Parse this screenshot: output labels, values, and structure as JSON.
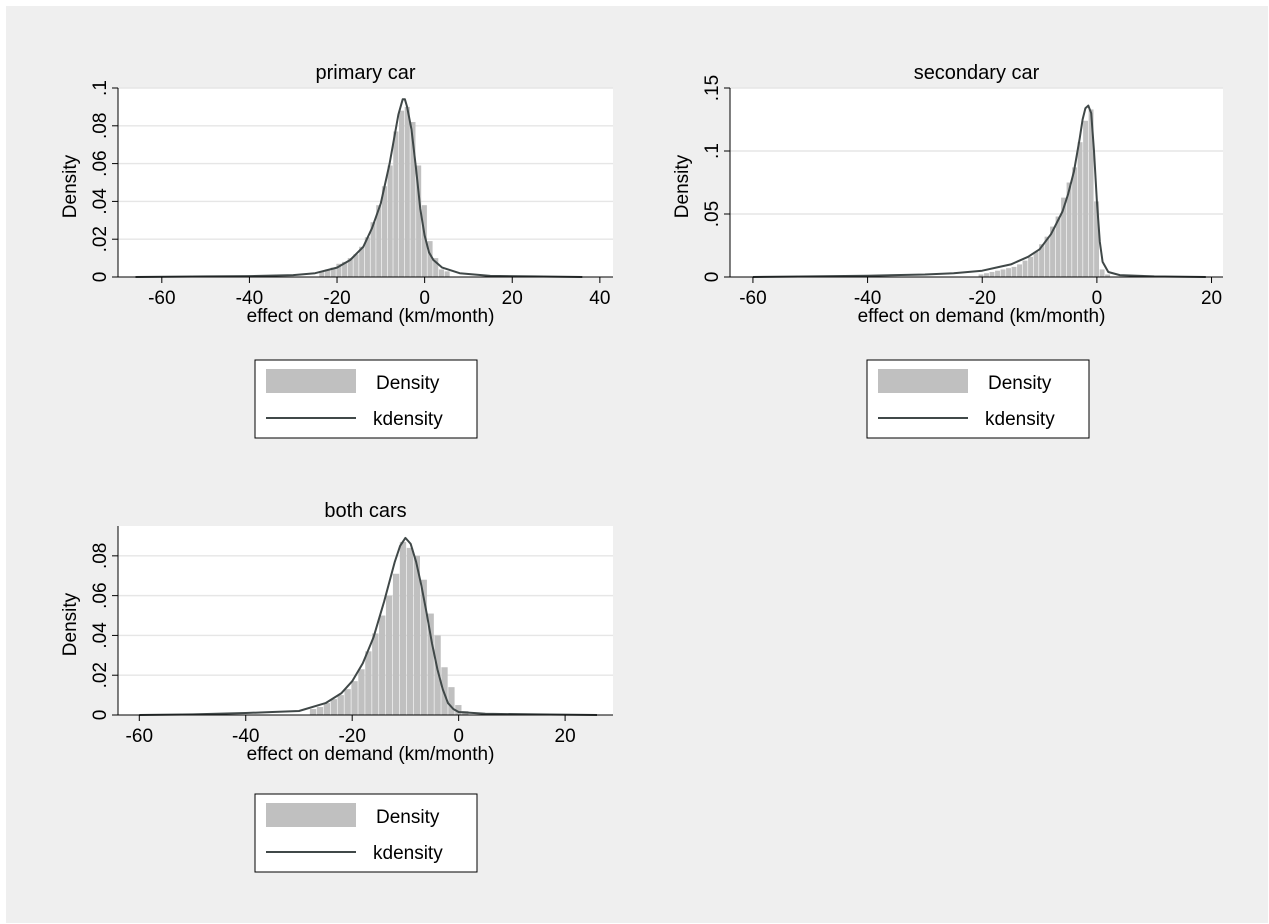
{
  "figure": {
    "background": "#efefef",
    "plot_background": "#ffffff",
    "hist_color": "#c0c0c0",
    "line_color": "#404848",
    "grid_color": "#e6e6e6"
  },
  "legend": {
    "hist_label": "Density",
    "line_label": "kdensity"
  },
  "chart_data": [
    {
      "type": "area",
      "title": "primary car",
      "xlabel": "effect on demand (km/month)",
      "ylabel": "Density",
      "xlim": [
        -70,
        43
      ],
      "ylim": [
        0,
        0.1
      ],
      "xticks": [
        -60,
        -40,
        -20,
        0,
        20,
        40
      ],
      "yticks": [
        0,
        0.02,
        0.04,
        0.06,
        0.08,
        0.1
      ],
      "ytick_labels": [
        "0",
        ".02",
        ".04",
        ".06",
        ".08",
        ".1"
      ],
      "grid": true,
      "legend_position": "bottom",
      "series": [
        {
          "name": "Density",
          "kind": "histogram",
          "bin_width": 1.3,
          "bins": [
            {
              "x": -23.4,
              "y": 0.003
            },
            {
              "x": -22.1,
              "y": 0.004
            },
            {
              "x": -20.8,
              "y": 0.005
            },
            {
              "x": -19.5,
              "y": 0.007
            },
            {
              "x": -18.2,
              "y": 0.008
            },
            {
              "x": -16.9,
              "y": 0.01
            },
            {
              "x": -15.6,
              "y": 0.012
            },
            {
              "x": -14.3,
              "y": 0.016
            },
            {
              "x": -13.0,
              "y": 0.021
            },
            {
              "x": -11.7,
              "y": 0.029
            },
            {
              "x": -10.4,
              "y": 0.038
            },
            {
              "x": -9.1,
              "y": 0.048
            },
            {
              "x": -7.8,
              "y": 0.059
            },
            {
              "x": -6.5,
              "y": 0.077
            },
            {
              "x": -5.2,
              "y": 0.088
            },
            {
              "x": -3.9,
              "y": 0.09
            },
            {
              "x": -2.6,
              "y": 0.082
            },
            {
              "x": -1.3,
              "y": 0.059
            },
            {
              "x": 0.0,
              "y": 0.038
            },
            {
              "x": 1.3,
              "y": 0.019
            },
            {
              "x": 2.6,
              "y": 0.01
            },
            {
              "x": 3.9,
              "y": 0.004
            },
            {
              "x": 5.2,
              "y": 0.003
            }
          ]
        },
        {
          "name": "kdensity",
          "kind": "line",
          "points": [
            [
              -66,
              0
            ],
            [
              -50,
              0.0003
            ],
            [
              -40,
              0.0005
            ],
            [
              -30,
              0.001
            ],
            [
              -25,
              0.002
            ],
            [
              -20,
              0.005
            ],
            [
              -17,
              0.009
            ],
            [
              -14,
              0.016
            ],
            [
              -12,
              0.026
            ],
            [
              -10,
              0.039
            ],
            [
              -8,
              0.06
            ],
            [
              -7,
              0.073
            ],
            [
              -6,
              0.086
            ],
            [
              -5,
              0.094
            ],
            [
              -4.5,
              0.094
            ],
            [
              -4,
              0.09
            ],
            [
              -3,
              0.078
            ],
            [
              -2,
              0.058
            ],
            [
              -1,
              0.036
            ],
            [
              0,
              0.022
            ],
            [
              1,
              0.013
            ],
            [
              2,
              0.009
            ],
            [
              4,
              0.005
            ],
            [
              8,
              0.002
            ],
            [
              15,
              0.0006
            ],
            [
              25,
              0.0003
            ],
            [
              36,
              0
            ]
          ]
        }
      ]
    },
    {
      "type": "area",
      "title": "secondary car",
      "xlabel": "effect on demand (km/month)",
      "ylabel": "Density",
      "xlim": [
        -64,
        22
      ],
      "ylim": [
        0,
        0.15
      ],
      "xticks": [
        -60,
        -40,
        -20,
        0,
        20
      ],
      "yticks": [
        0,
        0.05,
        0.1,
        0.15
      ],
      "ytick_labels": [
        "0",
        ".05",
        ".1",
        ".15"
      ],
      "grid": true,
      "legend_position": "bottom",
      "series": [
        {
          "name": "Density",
          "kind": "histogram",
          "bin_width": 0.96,
          "bins": [
            {
              "x": -20.16,
              "y": 0.002
            },
            {
              "x": -19.2,
              "y": 0.003
            },
            {
              "x": -18.24,
              "y": 0.004
            },
            {
              "x": -17.28,
              "y": 0.005
            },
            {
              "x": -16.32,
              "y": 0.006
            },
            {
              "x": -15.36,
              "y": 0.007
            },
            {
              "x": -14.4,
              "y": 0.008
            },
            {
              "x": -13.44,
              "y": 0.01
            },
            {
              "x": -12.48,
              "y": 0.013
            },
            {
              "x": -11.52,
              "y": 0.016
            },
            {
              "x": -10.56,
              "y": 0.02
            },
            {
              "x": -9.6,
              "y": 0.026
            },
            {
              "x": -8.64,
              "y": 0.032
            },
            {
              "x": -7.68,
              "y": 0.04
            },
            {
              "x": -6.72,
              "y": 0.048
            },
            {
              "x": -5.76,
              "y": 0.063
            },
            {
              "x": -4.8,
              "y": 0.075
            },
            {
              "x": -3.84,
              "y": 0.087
            },
            {
              "x": -2.88,
              "y": 0.107
            },
            {
              "x": -1.92,
              "y": 0.124
            },
            {
              "x": -0.96,
              "y": 0.133
            },
            {
              "x": 0.0,
              "y": 0.06
            },
            {
              "x": 0.96,
              "y": 0.006
            },
            {
              "x": 1.92,
              "y": 0.002
            }
          ]
        },
        {
          "name": "kdensity",
          "kind": "line",
          "points": [
            [
              -60,
              0
            ],
            [
              -50,
              0.0005
            ],
            [
              -40,
              0.001
            ],
            [
              -30,
              0.002
            ],
            [
              -25,
              0.003
            ],
            [
              -20,
              0.005
            ],
            [
              -17,
              0.008
            ],
            [
              -15,
              0.01
            ],
            [
              -12,
              0.016
            ],
            [
              -10,
              0.022
            ],
            [
              -8,
              0.034
            ],
            [
              -6,
              0.052
            ],
            [
              -5,
              0.066
            ],
            [
              -4,
              0.084
            ],
            [
              -3,
              0.11
            ],
            [
              -2.5,
              0.125
            ],
            [
              -2,
              0.134
            ],
            [
              -1.5,
              0.136
            ],
            [
              -1,
              0.13
            ],
            [
              -0.5,
              0.1
            ],
            [
              0,
              0.06
            ],
            [
              0.5,
              0.028
            ],
            [
              1,
              0.012
            ],
            [
              2,
              0.004
            ],
            [
              4,
              0.0015
            ],
            [
              10,
              0.0005
            ],
            [
              19,
              0
            ]
          ]
        }
      ]
    },
    {
      "type": "area",
      "title": "both cars",
      "xlabel": "effect on demand (km/month)",
      "ylabel": "Density",
      "xlim": [
        -64,
        29
      ],
      "ylim": [
        0,
        0.095
      ],
      "xticks": [
        -60,
        -40,
        -20,
        0,
        20
      ],
      "yticks": [
        0,
        0.02,
        0.04,
        0.06,
        0.08
      ],
      "ytick_labels": [
        "0",
        ".02",
        ".04",
        ".06",
        ".08"
      ],
      "grid": true,
      "legend_position": "bottom",
      "series": [
        {
          "name": "Density",
          "kind": "histogram",
          "bin_width": 1.3,
          "bins": [
            {
              "x": -27.3,
              "y": 0.003
            },
            {
              "x": -26.0,
              "y": 0.004
            },
            {
              "x": -24.7,
              "y": 0.006
            },
            {
              "x": -23.4,
              "y": 0.008
            },
            {
              "x": -22.1,
              "y": 0.01
            },
            {
              "x": -20.8,
              "y": 0.013
            },
            {
              "x": -19.5,
              "y": 0.017
            },
            {
              "x": -18.2,
              "y": 0.023
            },
            {
              "x": -16.9,
              "y": 0.032
            },
            {
              "x": -15.6,
              "y": 0.041
            },
            {
              "x": -14.3,
              "y": 0.05
            },
            {
              "x": -13.0,
              "y": 0.06
            },
            {
              "x": -11.7,
              "y": 0.071
            },
            {
              "x": -10.4,
              "y": 0.087
            },
            {
              "x": -9.1,
              "y": 0.084
            },
            {
              "x": -7.8,
              "y": 0.08
            },
            {
              "x": -6.5,
              "y": 0.068
            },
            {
              "x": -5.2,
              "y": 0.051
            },
            {
              "x": -3.9,
              "y": 0.04
            },
            {
              "x": -2.6,
              "y": 0.024
            },
            {
              "x": -1.3,
              "y": 0.014
            },
            {
              "x": 0.0,
              "y": 0.005
            },
            {
              "x": 1.3,
              "y": 0.002
            }
          ]
        },
        {
          "name": "kdensity",
          "kind": "line",
          "points": [
            [
              -60,
              0
            ],
            [
              -50,
              0.0003
            ],
            [
              -40,
              0.001
            ],
            [
              -35,
              0.0015
            ],
            [
              -30,
              0.002
            ],
            [
              -25,
              0.006
            ],
            [
              -22,
              0.011
            ],
            [
              -20,
              0.017
            ],
            [
              -18,
              0.026
            ],
            [
              -16,
              0.039
            ],
            [
              -14,
              0.057
            ],
            [
              -12,
              0.077
            ],
            [
              -11,
              0.085
            ],
            [
              -10,
              0.089
            ],
            [
              -9,
              0.086
            ],
            [
              -8,
              0.077
            ],
            [
              -7,
              0.065
            ],
            [
              -6,
              0.051
            ],
            [
              -5,
              0.036
            ],
            [
              -4,
              0.023
            ],
            [
              -3,
              0.013
            ],
            [
              -2,
              0.006
            ],
            [
              -1,
              0.003
            ],
            [
              0,
              0.0015
            ],
            [
              5,
              0.0006
            ],
            [
              15,
              0.0003
            ],
            [
              26,
              0
            ]
          ]
        }
      ]
    }
  ]
}
